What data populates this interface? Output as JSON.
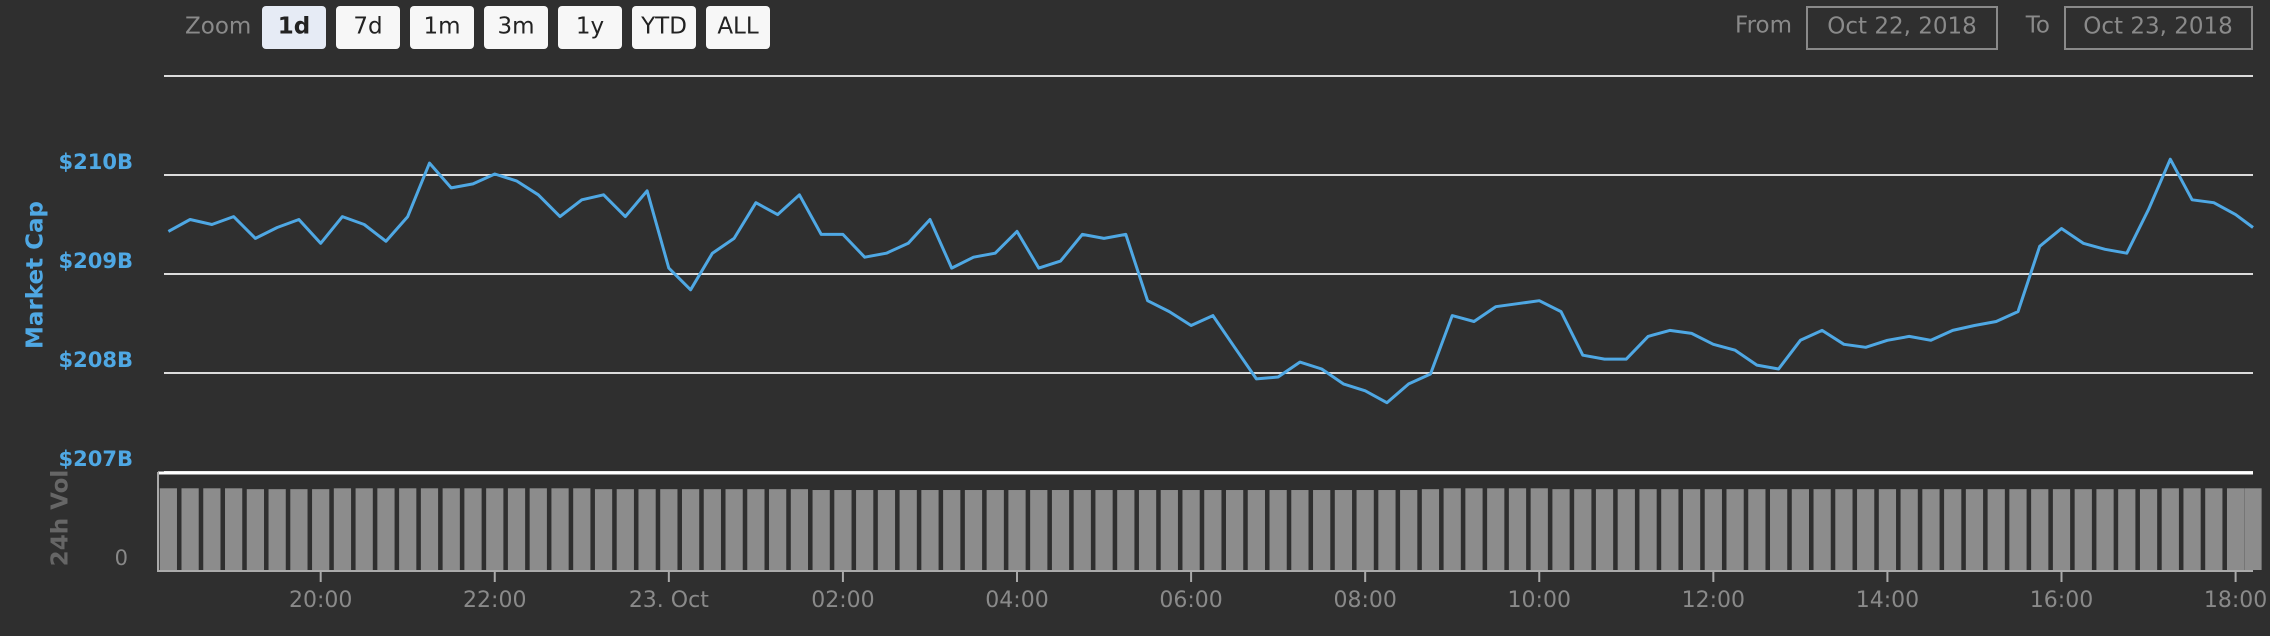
{
  "toolbar": {
    "zoom_label": "Zoom",
    "zoom_buttons": [
      "1d",
      "7d",
      "1m",
      "3m",
      "1y",
      "YTD",
      "ALL"
    ],
    "selected": 0,
    "from_label": "From",
    "from_value": "Oct 22, 2018",
    "to_label": "To",
    "to_value": "Oct 23, 2018"
  },
  "chart_data": [
    {
      "type": "line",
      "y_label": "Market Cap",
      "color": "#4fa8e4",
      "x": [
        18.25,
        18.5,
        18.75,
        19,
        19.25,
        19.5,
        19.75,
        20,
        20.25,
        20.5,
        20.75,
        21,
        21.25,
        21.5,
        21.75,
        22,
        22.25,
        22.5,
        22.75,
        23,
        23.25,
        23.5,
        23.75,
        24,
        24.25,
        24.5,
        24.75,
        25,
        25.25,
        25.5,
        25.75,
        26,
        26.25,
        26.5,
        26.75,
        27,
        27.25,
        27.5,
        27.75,
        28,
        28.25,
        28.5,
        28.75,
        29,
        29.25,
        29.5,
        29.75,
        30,
        30.25,
        30.5,
        30.75,
        31,
        31.25,
        31.5,
        31.75,
        32,
        32.25,
        32.5,
        32.75,
        33,
        33.25,
        33.5,
        33.75,
        34,
        34.25,
        34.5,
        34.75,
        35,
        35.25,
        35.5,
        35.75,
        36,
        36.25,
        36.5,
        36.75,
        37,
        37.25,
        37.5,
        37.75,
        38,
        38.25,
        38.5,
        38.75,
        39,
        39.25,
        39.5,
        39.75,
        40,
        40.25,
        40.5,
        40.75,
        41,
        41.25,
        41.5,
        41.75,
        42,
        42.2
      ],
      "values": [
        209.43,
        209.55,
        209.5,
        209.58,
        209.36,
        209.47,
        209.55,
        209.31,
        209.58,
        209.5,
        209.33,
        209.58,
        210.12,
        209.87,
        209.91,
        210.01,
        209.94,
        209.8,
        209.58,
        209.75,
        209.8,
        209.58,
        209.84,
        209.06,
        208.84,
        209.21,
        209.36,
        209.72,
        209.6,
        209.8,
        209.4,
        209.4,
        209.17,
        209.21,
        209.31,
        209.55,
        209.06,
        209.17,
        209.21,
        209.43,
        209.06,
        209.13,
        209.4,
        209.36,
        209.4,
        208.73,
        208.62,
        208.48,
        208.58,
        208.26,
        207.94,
        207.96,
        208.11,
        208.04,
        207.89,
        207.82,
        207.7,
        207.89,
        207.99,
        208.58,
        208.52,
        208.67,
        208.7,
        208.73,
        208.62,
        208.18,
        208.14,
        208.14,
        208.37,
        208.43,
        208.4,
        208.29,
        208.23,
        208.08,
        208.04,
        208.33,
        208.43,
        208.29,
        208.26,
        208.33,
        208.37,
        208.33,
        208.43,
        208.48,
        208.52,
        208.62,
        209.28,
        209.46,
        209.31,
        209.25,
        209.21,
        209.65,
        210.16,
        209.75,
        209.72,
        209.6,
        209.47
      ],
      "xlim": [
        18.2,
        42.2
      ],
      "xticks": [
        {
          "value": 20,
          "label": "20:00"
        },
        {
          "value": 22,
          "label": "22:00"
        },
        {
          "value": 24,
          "label": "23. Oct"
        },
        {
          "value": 26,
          "label": "02:00"
        },
        {
          "value": 28,
          "label": "04:00"
        },
        {
          "value": 30,
          "label": "06:00"
        },
        {
          "value": 32,
          "label": "08:00"
        },
        {
          "value": 34,
          "label": "10:00"
        },
        {
          "value": 36,
          "label": "12:00"
        },
        {
          "value": 38,
          "label": "14:00"
        },
        {
          "value": 40,
          "label": "16:00"
        },
        {
          "value": 42,
          "label": "18:00"
        }
      ],
      "ylim": [
        207,
        211
      ],
      "yticks": [
        {
          "value": 207,
          "label": "$207B"
        },
        {
          "value": 208,
          "label": "$208B"
        },
        {
          "value": 209,
          "label": "$209B"
        },
        {
          "value": 210,
          "label": "$210B"
        }
      ],
      "grid": true
    },
    {
      "type": "bar",
      "y_label": "24h Vol",
      "color": "#8c8c8c",
      "ylim": [
        0,
        1
      ],
      "yticks": [
        0
      ],
      "values": [
        0.95,
        0.95,
        0.95,
        0.95,
        0.94,
        0.94,
        0.94,
        0.94,
        0.95,
        0.95,
        0.95,
        0.95,
        0.95,
        0.95,
        0.95,
        0.95,
        0.95,
        0.95,
        0.95,
        0.95,
        0.94,
        0.94,
        0.94,
        0.94,
        0.94,
        0.94,
        0.94,
        0.94,
        0.94,
        0.94,
        0.93,
        0.93,
        0.93,
        0.93,
        0.93,
        0.93,
        0.93,
        0.93,
        0.93,
        0.93,
        0.93,
        0.93,
        0.93,
        0.93,
        0.93,
        0.93,
        0.93,
        0.93,
        0.93,
        0.93,
        0.93,
        0.93,
        0.93,
        0.93,
        0.93,
        0.93,
        0.93,
        0.93,
        0.94,
        0.95,
        0.95,
        0.95,
        0.95,
        0.95,
        0.94,
        0.94,
        0.94,
        0.94,
        0.94,
        0.94,
        0.94,
        0.94,
        0.94,
        0.94,
        0.94,
        0.94,
        0.94,
        0.94,
        0.94,
        0.94,
        0.94,
        0.94,
        0.94,
        0.94,
        0.94,
        0.94,
        0.94,
        0.94,
        0.94,
        0.94,
        0.94,
        0.94,
        0.95,
        0.95,
        0.95,
        0.95,
        0.95
      ]
    }
  ]
}
